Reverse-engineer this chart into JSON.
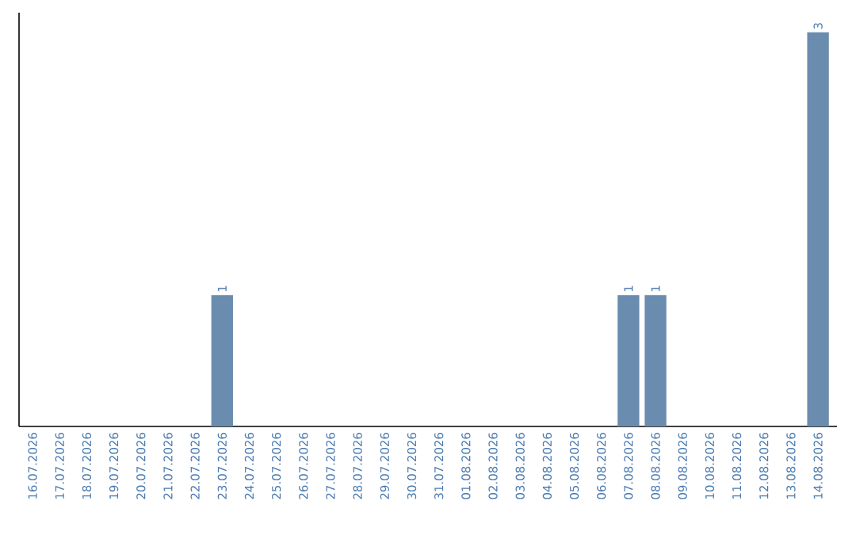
{
  "chart_data": {
    "type": "bar",
    "color": "#6a8caf",
    "categories": [
      "16.07.2026",
      "17.07.2026",
      "18.07.2026",
      "19.07.2026",
      "20.07.2026",
      "21.07.2026",
      "22.07.2026",
      "23.07.2026",
      "24.07.2026",
      "25.07.2026",
      "26.07.2026",
      "27.07.2026",
      "28.07.2026",
      "29.07.2026",
      "30.07.2026",
      "31.07.2026",
      "01.08.2026",
      "02.08.2026",
      "03.08.2026",
      "04.08.2026",
      "05.08.2026",
      "06.08.2026",
      "07.08.2026",
      "08.08.2026",
      "09.08.2026",
      "10.08.2026",
      "11.08.2026",
      "12.08.2026",
      "13.08.2026",
      "14.08.2026"
    ],
    "values": [
      0,
      0,
      0,
      0,
      0,
      0,
      0,
      1,
      0,
      0,
      0,
      0,
      0,
      0,
      0,
      0,
      0,
      0,
      0,
      0,
      0,
      0,
      1,
      1,
      0,
      0,
      0,
      0,
      0,
      3
    ],
    "value_labels": [
      null,
      null,
      null,
      null,
      null,
      null,
      null,
      "1",
      null,
      null,
      null,
      null,
      null,
      null,
      null,
      null,
      null,
      null,
      null,
      null,
      null,
      null,
      "1",
      "1",
      null,
      null,
      null,
      null,
      null,
      "3"
    ],
    "grid": false
  }
}
